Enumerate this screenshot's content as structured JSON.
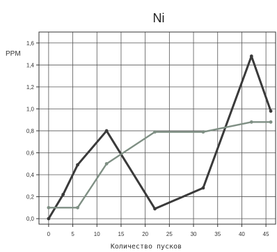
{
  "chart_data": {
    "type": "line",
    "title": "Ni",
    "ylabel": "PPM",
    "xlabel": "Количество пусков",
    "xlim": [
      -2,
      47
    ],
    "ylim": [
      -0.05,
      1.7
    ],
    "xticks": [
      0,
      5,
      10,
      15,
      20,
      25,
      30,
      35,
      40,
      45
    ],
    "xtick_labels": [
      "0",
      "5",
      "10",
      "15",
      "20",
      "25",
      "30",
      "35",
      "40",
      "45"
    ],
    "yticks": [
      0.0,
      0.2,
      0.4,
      0.6,
      0.8,
      1.0,
      1.2,
      1.4,
      1.6
    ],
    "ytick_labels": [
      "0,0",
      "0,2",
      "0,4",
      "0,6",
      "0,8",
      "1,0",
      "1,2",
      "1,4",
      "1,6"
    ],
    "grid": true,
    "legend": "none",
    "series": [
      {
        "color": "#3a3a3a",
        "points": [
          {
            "x": 0,
            "y": 0.0
          },
          {
            "x": 3,
            "y": 0.22
          },
          {
            "x": 6,
            "y": 0.49
          },
          {
            "x": 12,
            "y": 0.8
          },
          {
            "x": 22,
            "y": 0.09
          },
          {
            "x": 32,
            "y": 0.28
          },
          {
            "x": 42,
            "y": 1.48
          },
          {
            "x": 46,
            "y": 0.98
          }
        ]
      },
      {
        "color": "#7f8f84",
        "points": [
          {
            "x": 0,
            "y": 0.1
          },
          {
            "x": 6,
            "y": 0.1
          },
          {
            "x": 12,
            "y": 0.5
          },
          {
            "x": 22,
            "y": 0.79
          },
          {
            "x": 32,
            "y": 0.79
          },
          {
            "x": 42,
            "y": 0.88
          },
          {
            "x": 46,
            "y": 0.88
          }
        ]
      }
    ]
  }
}
